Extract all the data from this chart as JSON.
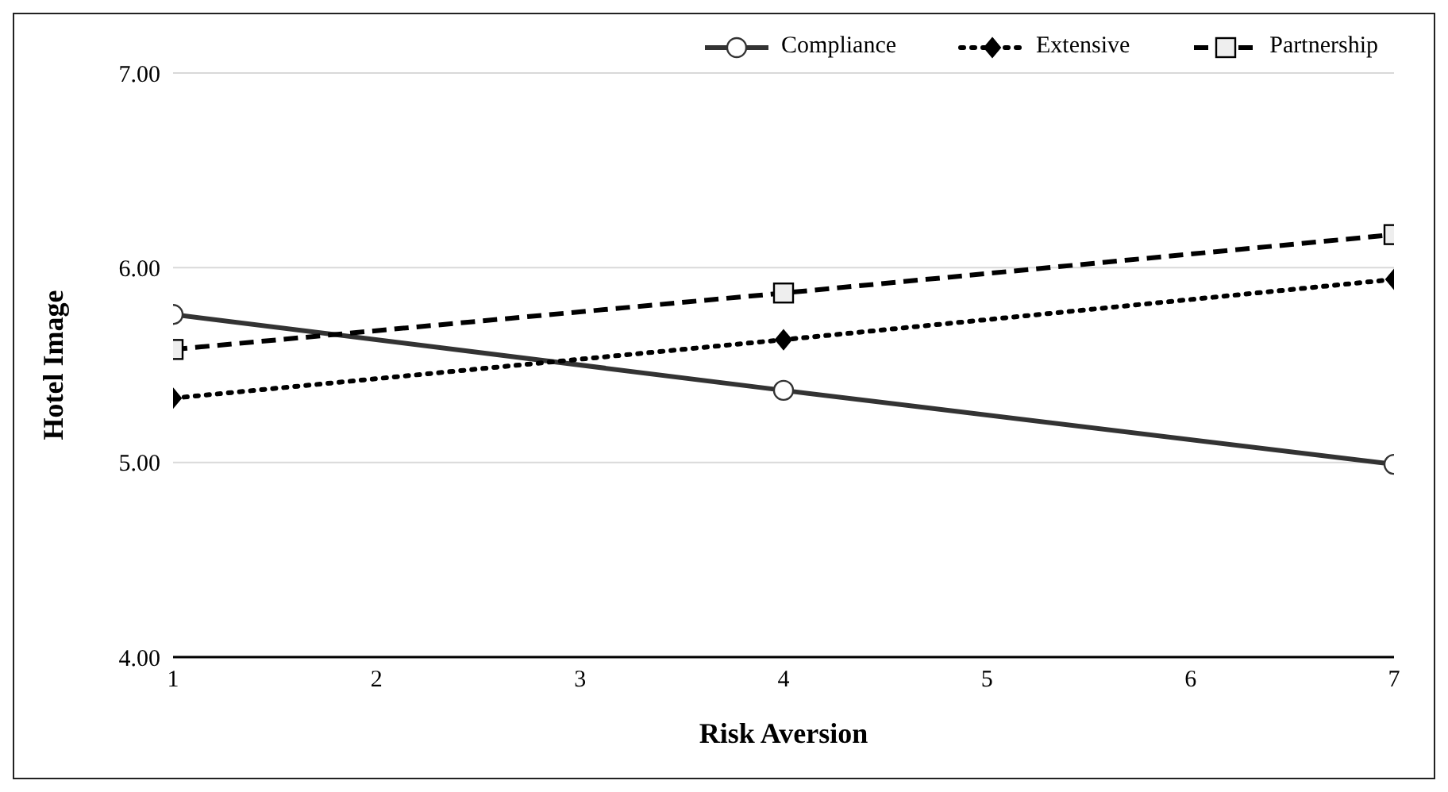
{
  "chart_data": {
    "type": "line",
    "xlabel": "Risk Aversion",
    "ylabel": "Hotel Image",
    "x": [
      1,
      4,
      7
    ],
    "series": [
      {
        "name": "Compliance",
        "color": "#333333",
        "values": [
          5.76,
          5.37,
          4.99
        ],
        "marker": "circle",
        "line_style": "solid"
      },
      {
        "name": "Extensive",
        "color": "#000000",
        "values": [
          5.33,
          5.63,
          5.94
        ],
        "marker": "diamond",
        "line_style": "dotted"
      },
      {
        "name": "Partnership",
        "color": "#000000",
        "values": [
          5.58,
          5.87,
          6.17
        ],
        "marker": "square",
        "line_style": "dashed"
      }
    ],
    "xlim": [
      1,
      7
    ],
    "xticks": [
      1,
      2,
      3,
      4,
      5,
      6,
      7
    ],
    "ylim": [
      4,
      7
    ],
    "yticks": [
      {
        "value": 4,
        "label": "4.00"
      },
      {
        "value": 5,
        "label": "5.00"
      },
      {
        "value": 6,
        "label": "6.00"
      },
      {
        "value": 7,
        "label": "7.00"
      }
    ],
    "grid": "y",
    "legend": "top right"
  }
}
